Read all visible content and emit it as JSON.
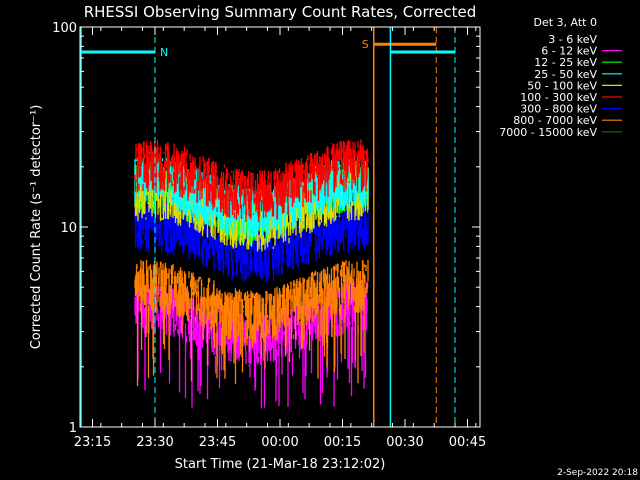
{
  "chart_data": {
    "type": "line",
    "title": "RHESSI Observing Summary Count Rates, Corrected",
    "xlabel": "Start Time (21-Mar-18 23:12:02)",
    "ylabel": "Corrected Count Rate (s⁻¹ detector⁻¹)",
    "yscale": "log",
    "ylim": [
      1,
      100
    ],
    "y_ticks": [
      {
        "value": 1,
        "label": "1"
      },
      {
        "value": 10,
        "label": "10"
      },
      {
        "value": 100,
        "label": "100"
      }
    ],
    "xlim_minutes": [
      0,
      96
    ],
    "x_ticks": [
      {
        "label": "23:15",
        "minute": 3
      },
      {
        "label": "23:30",
        "minute": 18
      },
      {
        "label": "23:45",
        "minute": 33
      },
      {
        "label": "00:00",
        "minute": 48
      },
      {
        "label": "00:15",
        "minute": 63
      },
      {
        "label": "00:30",
        "minute": 78
      },
      {
        "label": "00:45",
        "minute": 93
      }
    ],
    "legend_title": "Det 3, Att 0",
    "legend_position": "outside-right",
    "series": [
      {
        "name": "3 - 6 keV",
        "color": "#000000",
        "level": 0
      },
      {
        "name": "6 - 12 keV",
        "color": "#ff00ff",
        "level": 3.5
      },
      {
        "name": "12 - 25 keV",
        "color": "#00ff00",
        "level": 14
      },
      {
        "name": "25 - 50 keV",
        "color": "#00ffff",
        "level": 15
      },
      {
        "name": "50 - 100 keV",
        "color": "#dddd00",
        "level": 13
      },
      {
        "name": "100 - 300 keV",
        "color": "#ff0000",
        "level": 18
      },
      {
        "name": "300 - 800 keV",
        "color": "#0000ff",
        "level": 9
      },
      {
        "name": "800 - 7000 keV",
        "color": "#ff8000",
        "level": 4.5
      },
      {
        "name": "7000 - 15000 keV",
        "color": "#008000",
        "level": 0
      }
    ],
    "data_interval_minutes": [
      13.2,
      69.2
    ],
    "night_bar": {
      "label": "N",
      "color": "#00ffff",
      "value": 75,
      "start_minute": 0,
      "end_minute": 18,
      "end_line_minute": 18,
      "start_line_minute": 0
    },
    "saa_bar": {
      "label": "S",
      "color": "#ff8000",
      "value": 82,
      "start_minute": 70.5,
      "end_minute": 85.5,
      "line_minute": 70.5,
      "dash_line_minute": 85.5
    },
    "night_bar_2": {
      "color": "#00ffff",
      "value": 75,
      "start_minute": 74.5,
      "end_minute": 90,
      "line_minute": 74.5,
      "dash_line_minute": 90
    }
  },
  "timestamp": "2-Sep-2022 20:18"
}
